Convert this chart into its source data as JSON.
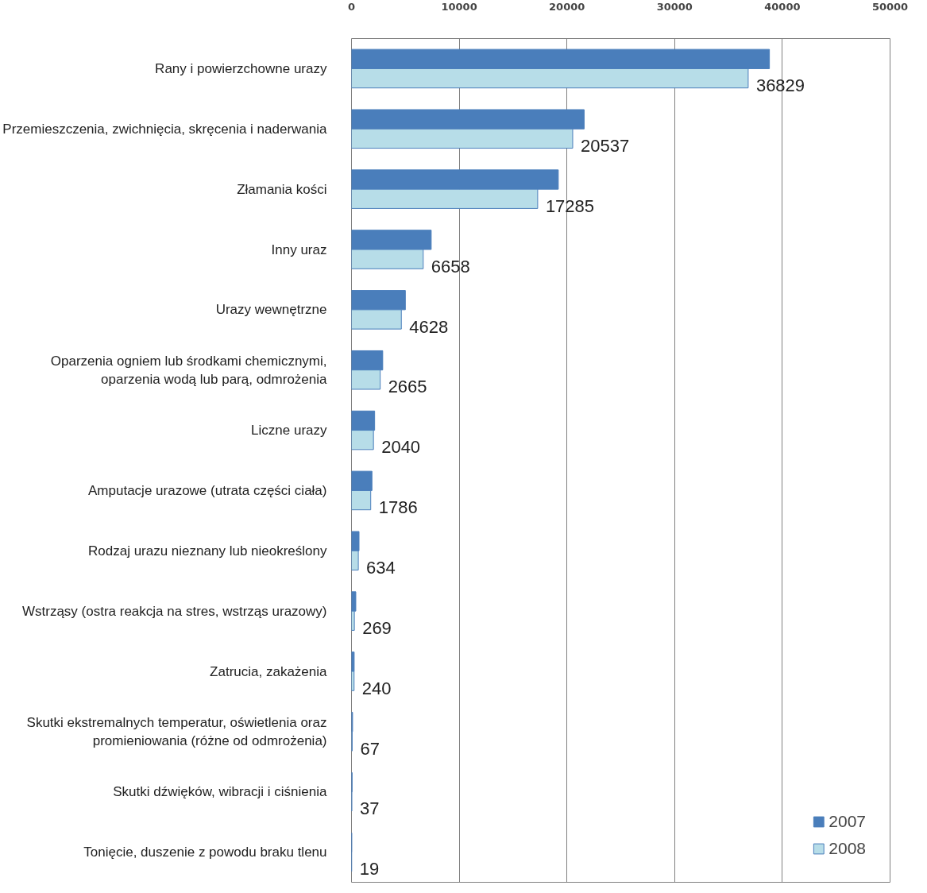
{
  "chart_data": {
    "type": "bar",
    "orientation": "horizontal",
    "categories": [
      "Rany i powierzchowne urazy",
      "Przemieszczenia, zwichnięcia, skręcenia i naderwania",
      "Złamania kości",
      "Inny uraz",
      "Urazy wewnętrzne",
      "Oparzenia ogniem lub środkami chemicznymi, oparzenia wodą lub parą, odmrożenia",
      "Liczne urazy",
      "Amputacje urazowe (utrata części ciała)",
      "Rodzaj urazu nieznany lub nieokreślony",
      "Wstrząsy (ostra reakcja na stres, wstrząs urazowy)",
      "Zatrucia, zakażenia",
      "Skutki ekstremalnych temperatur, oświetlenia oraz promieniowania (różne od odmrożenia)",
      "Skutki dźwięków, wibracji i ciśnienia",
      "Tonięcie, duszenie z powodu braku tlenu"
    ],
    "series": [
      {
        "name": "2007",
        "color": "#4a7ebb",
        "values": [
          38800,
          21600,
          19200,
          7400,
          5000,
          2900,
          2150,
          1900,
          700,
          400,
          250,
          100,
          60,
          30
        ]
      },
      {
        "name": "2008",
        "color": "#b7dde8",
        "values": [
          36829,
          20537,
          17285,
          6658,
          4628,
          2665,
          2040,
          1786,
          634,
          269,
          240,
          67,
          37,
          19
        ],
        "value_labels": [
          "36829",
          "20537",
          "17285",
          "6658",
          "4628",
          "2665",
          "2040",
          "1786",
          "634",
          "269",
          "240",
          "67",
          "37",
          "19"
        ]
      }
    ],
    "xlim": [
      0,
      50000
    ],
    "xticks": [
      0,
      10000,
      20000,
      30000,
      40000,
      50000
    ],
    "grid": "x",
    "legend": "bottom right"
  }
}
